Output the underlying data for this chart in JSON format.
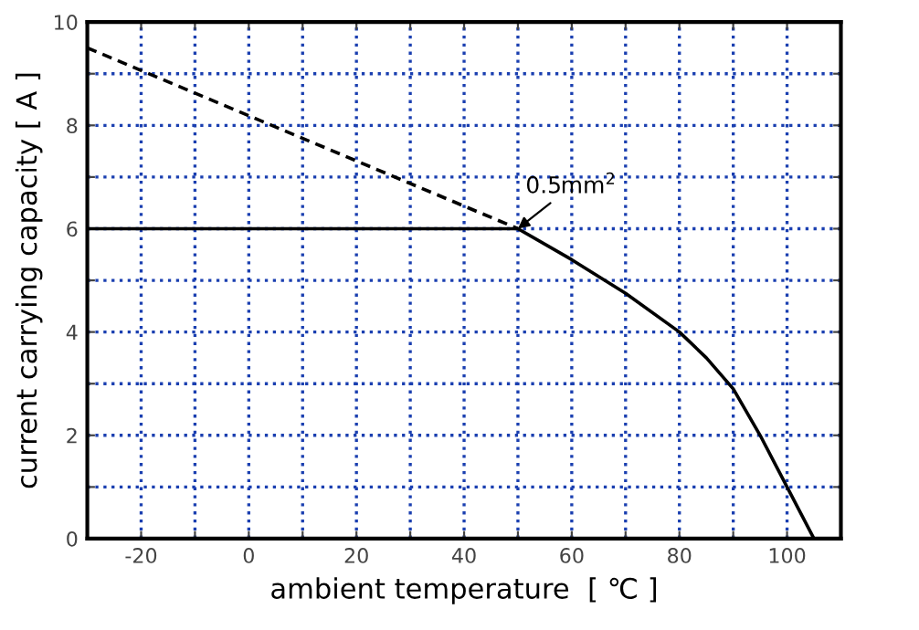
{
  "chart_data": {
    "type": "line",
    "xlabel": "ambient temperature  [ ℃ ]",
    "ylabel": "current carrying capacity [ A ]",
    "xlim": [
      -30,
      110
    ],
    "ylim": [
      0,
      10
    ],
    "xticks": [
      {
        "value": -20,
        "label": "-20"
      },
      {
        "value": -10,
        "label": null
      },
      0,
      {
        "value": 10,
        "label": null
      },
      20,
      {
        "value": 30,
        "label": null
      },
      40,
      {
        "value": 50,
        "label": null
      },
      60,
      {
        "value": 70,
        "label": null
      },
      80,
      {
        "value": 90,
        "label": null
      },
      100
    ],
    "yticks": [
      0,
      {
        "value": 1,
        "label": null
      },
      2,
      {
        "value": 3,
        "label": null
      },
      4,
      {
        "value": 5,
        "label": null
      },
      6,
      {
        "value": 7,
        "label": null
      },
      8,
      {
        "value": 9,
        "label": null
      },
      10
    ],
    "grid": true,
    "series": [
      {
        "color": "#000000",
        "line_style": "dashed",
        "x": [
          -30,
          50
        ],
        "values": [
          9.5,
          6
        ]
      },
      {
        "color": "#000000",
        "line_style": "solid",
        "x": [
          -30,
          50,
          60,
          70,
          80,
          85,
          90,
          95,
          100,
          105
        ],
        "values": [
          6,
          6,
          5.4,
          4.75,
          4.0,
          3.5,
          2.9,
          2.0,
          1.0,
          0
        ]
      }
    ],
    "annotations": [
      {
        "text": "0.5mm$^{2}$",
        "x": 50,
        "y": 6
      }
    ]
  }
}
